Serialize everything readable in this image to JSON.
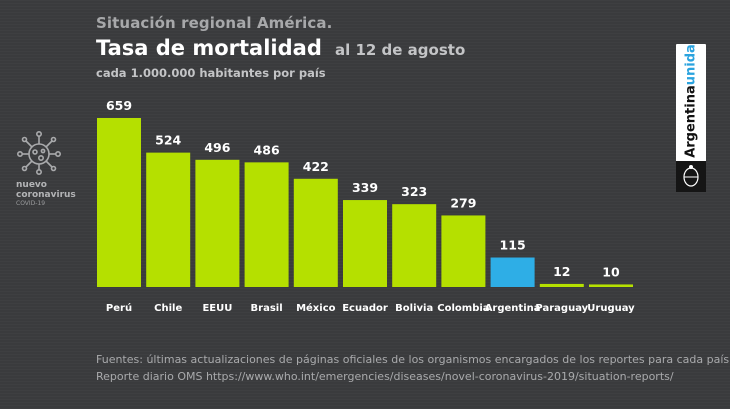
{
  "header": {
    "eyebrow": "Situación regional América.",
    "title": "Tasa de mortalidad",
    "date": "al 12 de agosto",
    "subtitle": "cada 1.000.000 habitantes por país"
  },
  "side_badge": {
    "line1": "nuevo",
    "line2": "coronavirus",
    "line3": "COVID-19",
    "icon": "coronavirus-icon"
  },
  "brand_badge": {
    "text": "Argentina",
    "accent": "unida",
    "seal_icon": "national-seal-icon"
  },
  "colors": {
    "background": "#3a3b3d",
    "bar_default": "#b5e000",
    "bar_highlight": "#2eaee6",
    "label": "#ffffff"
  },
  "chart_data": {
    "type": "bar",
    "title": "Tasa de mortalidad",
    "categories": [
      "Perú",
      "Chile",
      "EEUU",
      "Brasil",
      "México",
      "Ecuador",
      "Bolivia",
      "Colombia",
      "Argentina",
      "Paraguay",
      "Uruguay"
    ],
    "values": [
      659,
      524,
      496,
      486,
      422,
      339,
      323,
      279,
      115,
      12,
      10
    ],
    "highlight": "Argentina",
    "xlabel": "",
    "ylabel": "",
    "ylim": [
      0,
      659
    ],
    "grid": false,
    "data_labels": true
  },
  "footer": {
    "line1": "Fuentes: últimas actualizaciones de páginas oficiales de los organismos encargados de los reportes para cada país.",
    "line2": "Reporte diario OMS https://www.who.int/emergencies/diseases/novel-coronavirus-2019/situation-reports/"
  }
}
